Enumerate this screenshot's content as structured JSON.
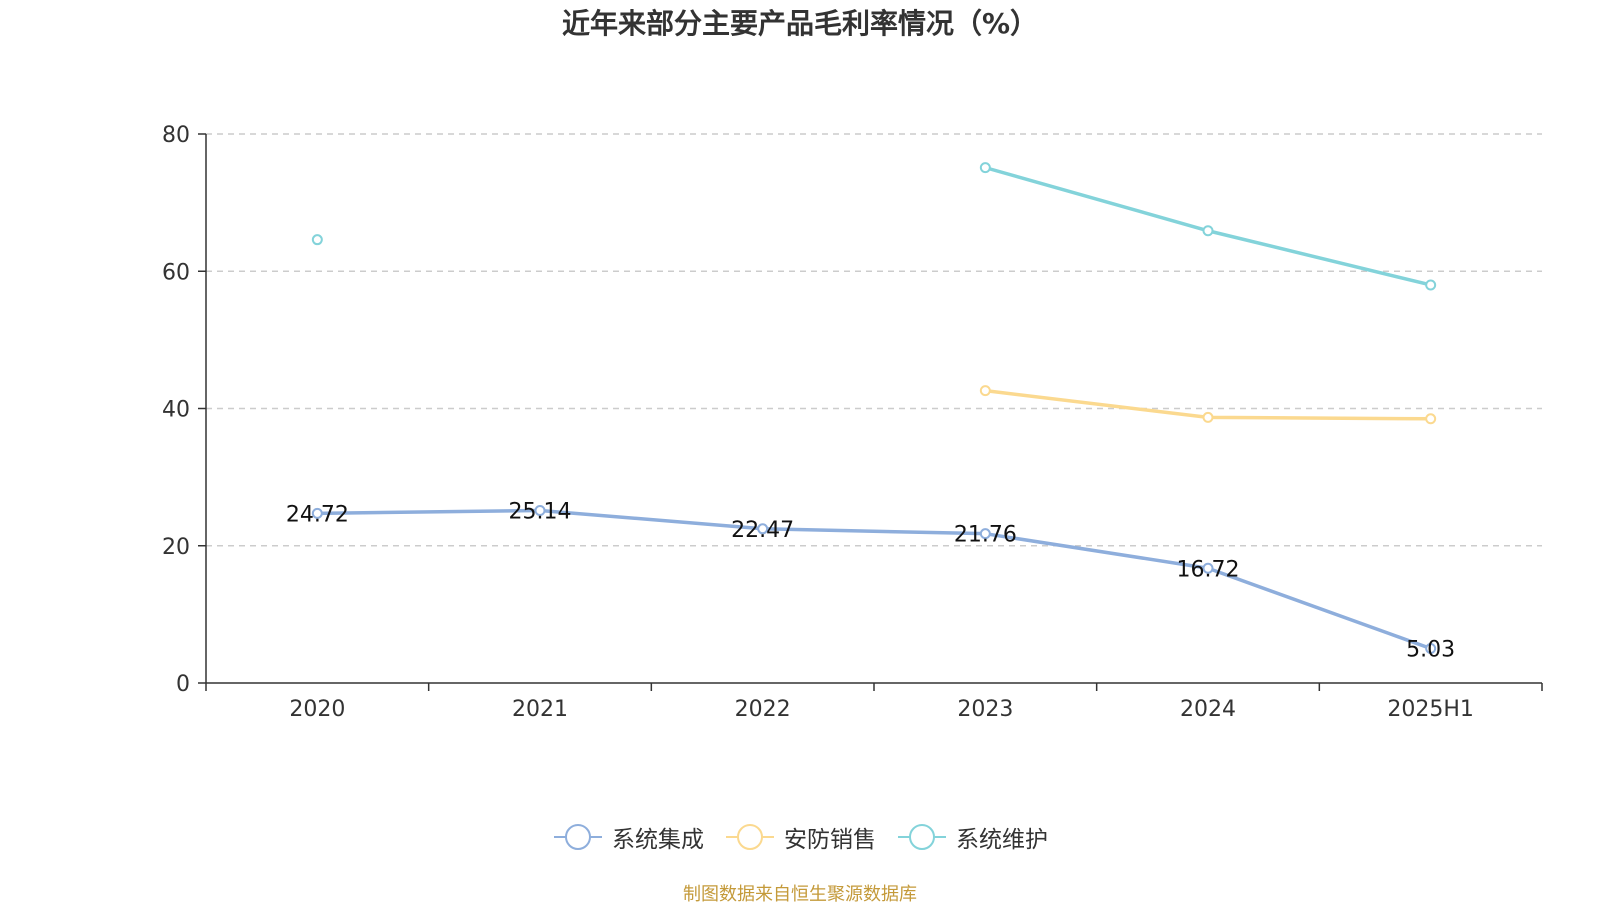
{
  "title": "近年来部分主要产品毛利率情况（%）",
  "source_note": "制图数据来自恒生聚源数据库",
  "colors": {
    "source_note": "#c49a3a",
    "grid": "#cccccc",
    "axis": "#333333"
  },
  "chart_data": {
    "type": "line",
    "title": "近年来部分主要产品毛利率情况（%）",
    "xlabel": "",
    "ylabel": "",
    "categories": [
      "2020",
      "2021",
      "2022",
      "2023",
      "2024",
      "2025H1"
    ],
    "ylim": [
      0,
      80
    ],
    "yticks": [
      0,
      20,
      40,
      60,
      80
    ],
    "grid": true,
    "legend_position": "bottom-center",
    "series": [
      {
        "name": "系统集成",
        "color": "#8eaedc",
        "values": [
          24.72,
          25.14,
          22.47,
          21.76,
          16.72,
          5.03
        ],
        "labels": [
          "24.72",
          "25.14",
          "22.47",
          "21.76",
          "16.72",
          "5.03"
        ],
        "show_labels": true
      },
      {
        "name": "安防销售",
        "color": "#fbd98f",
        "values": [
          null,
          null,
          null,
          42.6,
          38.7,
          38.5
        ],
        "show_labels": false
      },
      {
        "name": "系统维护",
        "color": "#83d3da",
        "values": [
          64.6,
          null,
          null,
          75.1,
          65.9,
          58.0
        ],
        "show_labels": false
      }
    ]
  }
}
